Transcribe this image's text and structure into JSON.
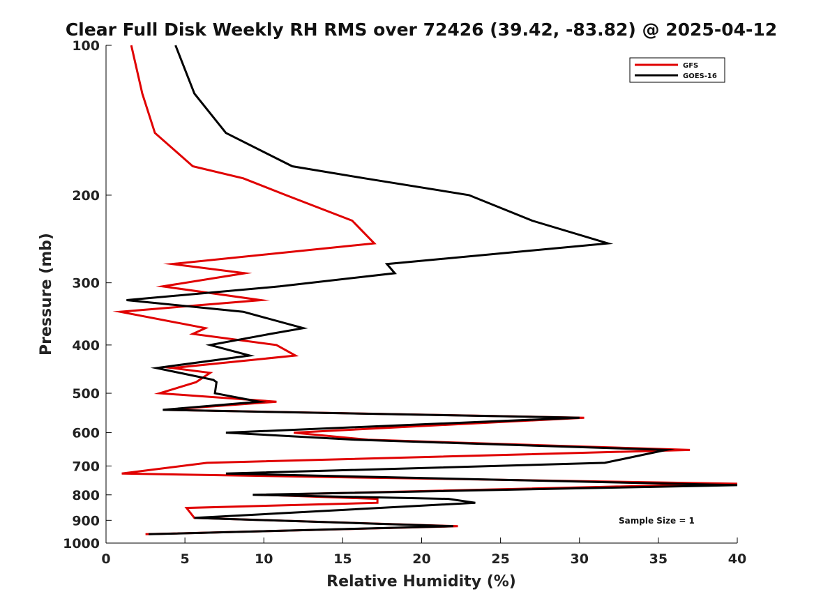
{
  "chart_data": {
    "type": "line",
    "title": "Clear Full Disk Weekly RH RMS over 72426 (39.42, -83.82) @ 2025-04-12",
    "xlabel": "Relative Humidity (%)",
    "ylabel": "Pressure (mb)",
    "xlim": [
      0,
      40
    ],
    "ylim": [
      1000,
      100
    ],
    "yscale": "log",
    "grid": false,
    "legend_position": "top-right",
    "xticks": [
      0,
      5,
      10,
      15,
      20,
      25,
      30,
      35,
      40
    ],
    "yticks": [
      100,
      200,
      300,
      400,
      500,
      600,
      700,
      800,
      900,
      1000
    ],
    "series": [
      {
        "name": "GFS",
        "color": "#e00000",
        "points": [
          [
            1.6,
            100
          ],
          [
            2.3,
            125
          ],
          [
            3.1,
            150
          ],
          [
            5.5,
            175
          ],
          [
            8.7,
            185
          ],
          [
            11.4,
            200
          ],
          [
            15.6,
            225
          ],
          [
            17.0,
            250
          ],
          [
            4.2,
            275
          ],
          [
            8.8,
            287
          ],
          [
            3.6,
            305
          ],
          [
            9.8,
            325
          ],
          [
            0.9,
            343
          ],
          [
            6.3,
            370
          ],
          [
            5.5,
            380
          ],
          [
            10.8,
            400
          ],
          [
            12.0,
            420
          ],
          [
            4.2,
            445
          ],
          [
            6.6,
            455
          ],
          [
            5.7,
            475
          ],
          [
            3.4,
            500
          ],
          [
            10.8,
            520
          ],
          [
            3.7,
            540
          ],
          [
            30.3,
            560
          ],
          [
            11.9,
            600
          ],
          [
            16.6,
            620
          ],
          [
            37.0,
            650
          ],
          [
            6.4,
            690
          ],
          [
            1.0,
            725
          ],
          [
            40.0,
            760
          ],
          [
            10.0,
            800
          ],
          [
            17.2,
            815
          ],
          [
            17.2,
            830
          ],
          [
            5.1,
            850
          ],
          [
            5.6,
            890
          ],
          [
            22.3,
            925
          ],
          [
            2.5,
            960
          ]
        ]
      },
      {
        "name": "GOES-16",
        "color": "#000000",
        "points": [
          [
            4.4,
            100
          ],
          [
            5.6,
            125
          ],
          [
            7.6,
            150
          ],
          [
            11.8,
            175
          ],
          [
            16.4,
            185
          ],
          [
            23.0,
            200
          ],
          [
            27.0,
            225
          ],
          [
            31.8,
            250
          ],
          [
            17.8,
            275
          ],
          [
            18.3,
            287
          ],
          [
            11.0,
            305
          ],
          [
            1.3,
            325
          ],
          [
            8.7,
            343
          ],
          [
            12.5,
            370
          ],
          [
            10.4,
            380
          ],
          [
            6.6,
            400
          ],
          [
            9.1,
            420
          ],
          [
            3.2,
            445
          ],
          [
            6.8,
            470
          ],
          [
            7.0,
            475
          ],
          [
            6.9,
            500
          ],
          [
            9.7,
            520
          ],
          [
            3.6,
            540
          ],
          [
            30.0,
            560
          ],
          [
            7.6,
            600
          ],
          [
            15.8,
            620
          ],
          [
            35.5,
            650
          ],
          [
            31.6,
            690
          ],
          [
            7.6,
            725
          ],
          [
            40.0,
            765
          ],
          [
            9.3,
            800
          ],
          [
            21.7,
            815
          ],
          [
            23.4,
            830
          ],
          [
            5.6,
            890
          ],
          [
            22.0,
            925
          ],
          [
            2.7,
            960
          ]
        ]
      }
    ],
    "annotation": "Sample Size = 1"
  }
}
